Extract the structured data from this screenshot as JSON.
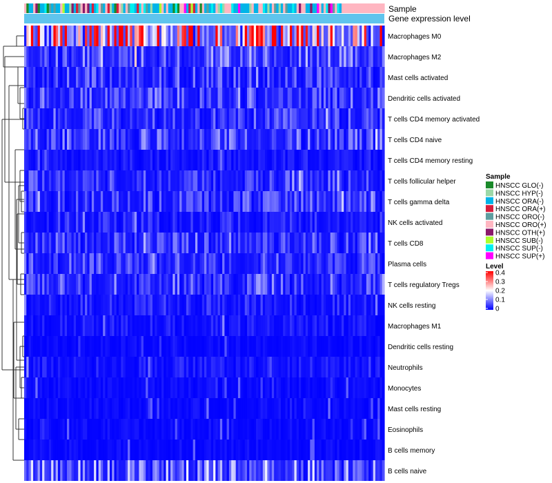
{
  "chart_data": {
    "type": "heatmap",
    "title": "",
    "annotation_tracks": [
      "Sample",
      "Gene expression level"
    ],
    "rows": [
      "Macrophages M0",
      "Macrophages M2",
      "Mast cells activated",
      "Dendritic cells activated",
      "T cells CD4 memory activated",
      "T cells CD4 naive",
      "T cells CD4 memory resting",
      "T cells follicular helper",
      "T cells gamma delta",
      "NK cells activated",
      "T cells CD8",
      "Plasma cells",
      "T cells regulatory  Tregs",
      "NK cells resting",
      "Macrophages M1",
      "Dendritic cells resting",
      "Neutrophils",
      "Monocytes",
      "Mast cells resting",
      "Eosinophils",
      "B cells memory",
      "B cells naive"
    ],
    "n_samples": 160,
    "row_mean_levels": [
      0.26,
      0.08,
      0.05,
      0.06,
      0.05,
      0.06,
      0.02,
      0.05,
      0.05,
      0.03,
      0.05,
      0.05,
      0.06,
      0.03,
      0.02,
      0.01,
      0.02,
      0.01,
      0.01,
      0.01,
      0.01,
      0.09
    ],
    "value_range": [
      0,
      0.4
    ],
    "sample_legend": {
      "title": "Sample",
      "items": [
        {
          "label": "HNSCC GLO(-)",
          "color": "#1a8a2a"
        },
        {
          "label": "HNSCC HYP(-)",
          "color": "#9cd8a8"
        },
        {
          "label": "HNSCC ORA(-)",
          "color": "#00b4e8"
        },
        {
          "label": "HNSCC ORA(+)",
          "color": "#d81e3c"
        },
        {
          "label": "HNSCC ORO(-)",
          "color": "#5e9ea0"
        },
        {
          "label": "HNSCC ORO(+)",
          "color": "#ffb6c1"
        },
        {
          "label": "HNSCC OTH(+)",
          "color": "#8b1a6b"
        },
        {
          "label": "HNSCC SUB(-)",
          "color": "#adff2f"
        },
        {
          "label": "HNSCC SUP(-)",
          "color": "#00f0f0"
        },
        {
          "label": "HNSCC SUP(+)",
          "color": "#ff00ff"
        }
      ]
    },
    "level_legend": {
      "title": "Level",
      "ticks": [
        "0.4",
        "0.3",
        "0.2",
        "0.1",
        "0"
      ],
      "colors": [
        "#0000ff",
        "#ffffff",
        "#ff0000"
      ]
    },
    "gene_expression_level_color": "#5fc4ed"
  }
}
